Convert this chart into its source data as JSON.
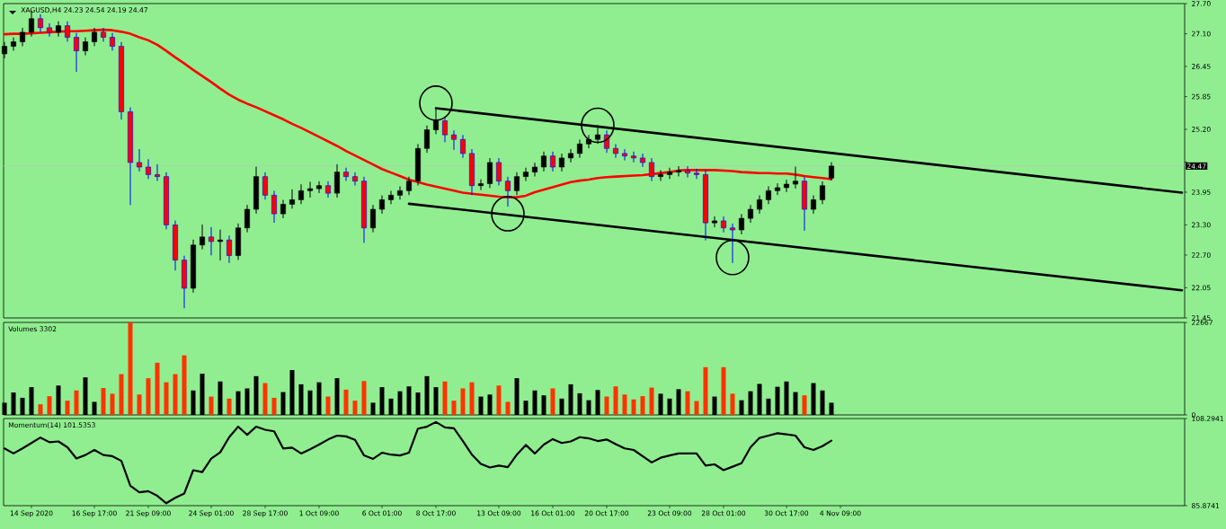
{
  "chart_data": [
    {
      "type": "candlestick",
      "title": "XAGUSD,H4  24.23 24.54 24.19 24.47",
      "categories": [
        null,
        null,
        null,
        null,
        null,
        null,
        null,
        null,
        null,
        null,
        null,
        null,
        null,
        null,
        null,
        null,
        null,
        null,
        null,
        null,
        null,
        null,
        null,
        null,
        null,
        null,
        null,
        null,
        null,
        null,
        null,
        null,
        null,
        null,
        null,
        null,
        null,
        null,
        null,
        null,
        null,
        null,
        null,
        null,
        null,
        null,
        null,
        null,
        null,
        null,
        null,
        null,
        null,
        null,
        null,
        null,
        null,
        null,
        null,
        null,
        null,
        null,
        null,
        null,
        null,
        null,
        null,
        null,
        null,
        null,
        null,
        null,
        null,
        null,
        null,
        null,
        null,
        null,
        null,
        null,
        null,
        null,
        null,
        null,
        null,
        null,
        null,
        null,
        null,
        null,
        null,
        null,
        null,
        null,
        null,
        null,
        null,
        null,
        null,
        null,
        null,
        null,
        null,
        null,
        null,
        null,
        null,
        null,
        null,
        null,
        null,
        null,
        null,
        null,
        null,
        null,
        null,
        null,
        null,
        null,
        null,
        null,
        null,
        null,
        null,
        null,
        null,
        null,
        null,
        null,
        null,
        null
      ],
      "ohlc": [
        [
          26.7,
          26.93,
          26.62,
          26.85
        ],
        [
          26.85,
          27.02,
          26.77,
          26.94
        ],
        [
          26.94,
          27.21,
          26.86,
          27.13
        ],
        [
          27.13,
          27.55,
          27.05,
          27.4
        ],
        [
          27.4,
          27.48,
          27.14,
          27.22
        ],
        [
          27.22,
          27.3,
          27.05,
          27.13
        ],
        [
          27.13,
          27.34,
          27.05,
          27.26
        ],
        [
          27.26,
          27.34,
          26.95,
          27.03
        ],
        [
          27.03,
          27.11,
          26.35,
          26.76
        ],
        [
          26.76,
          27.02,
          26.68,
          26.94
        ],
        [
          26.94,
          27.21,
          26.86,
          27.13
        ],
        [
          27.13,
          27.21,
          26.95,
          27.03
        ],
        [
          27.03,
          27.11,
          26.77,
          26.85
        ],
        [
          26.85,
          26.93,
          25.4,
          25.55
        ],
        [
          25.55,
          25.63,
          23.7,
          24.54
        ],
        [
          24.54,
          24.8,
          24.37,
          24.45
        ],
        [
          24.45,
          24.6,
          24.22,
          24.3
        ],
        [
          24.3,
          24.5,
          24.18,
          24.26
        ],
        [
          24.26,
          24.34,
          23.22,
          23.3
        ],
        [
          23.3,
          23.38,
          22.4,
          22.6
        ],
        [
          22.6,
          22.68,
          21.65,
          22.04
        ],
        [
          22.04,
          23.0,
          21.96,
          22.9
        ],
        [
          22.9,
          23.3,
          22.82,
          23.06
        ],
        [
          23.06,
          23.25,
          22.7,
          22.97
        ],
        [
          22.97,
          23.2,
          22.6,
          23.0
        ],
        [
          23.0,
          23.08,
          22.55,
          22.69
        ],
        [
          22.69,
          23.32,
          22.61,
          23.24
        ],
        [
          23.24,
          23.69,
          23.16,
          23.61
        ],
        [
          23.61,
          24.45,
          23.53,
          24.26
        ],
        [
          24.26,
          24.34,
          23.81,
          23.89
        ],
        [
          23.89,
          23.97,
          23.35,
          23.52
        ],
        [
          23.52,
          23.79,
          23.44,
          23.71
        ],
        [
          23.71,
          24.0,
          23.63,
          23.8
        ],
        [
          23.8,
          24.1,
          23.72,
          23.98
        ],
        [
          23.98,
          24.15,
          23.85,
          24.02
        ],
        [
          24.02,
          24.16,
          23.94,
          24.08
        ],
        [
          24.08,
          24.16,
          23.85,
          23.93
        ],
        [
          23.93,
          24.5,
          23.85,
          24.35
        ],
        [
          24.35,
          24.43,
          24.18,
          24.26
        ],
        [
          24.26,
          24.34,
          24.09,
          24.17
        ],
        [
          24.17,
          24.25,
          22.95,
          23.24
        ],
        [
          23.24,
          23.69,
          23.16,
          23.61
        ],
        [
          23.61,
          23.88,
          23.53,
          23.8
        ],
        [
          23.8,
          23.97,
          23.72,
          23.89
        ],
        [
          23.89,
          24.06,
          23.81,
          23.98
        ],
        [
          23.98,
          24.25,
          23.9,
          24.17
        ],
        [
          24.17,
          24.9,
          24.09,
          24.82
        ],
        [
          24.82,
          25.27,
          24.74,
          25.19
        ],
        [
          25.19,
          25.62,
          25.11,
          25.37
        ],
        [
          25.37,
          25.45,
          24.95,
          25.09
        ],
        [
          25.09,
          25.17,
          24.8,
          25.0
        ],
        [
          25.0,
          25.08,
          24.64,
          24.72
        ],
        [
          24.72,
          24.8,
          23.9,
          24.08
        ],
        [
          24.08,
          24.2,
          24.0,
          24.12
        ],
        [
          24.12,
          24.62,
          24.04,
          24.54
        ],
        [
          24.54,
          24.62,
          24.09,
          24.17
        ],
        [
          24.17,
          24.25,
          23.67,
          23.98
        ],
        [
          23.98,
          24.34,
          23.9,
          24.26
        ],
        [
          24.26,
          24.43,
          24.18,
          24.35
        ],
        [
          24.35,
          24.53,
          24.27,
          24.45
        ],
        [
          24.45,
          24.75,
          24.37,
          24.67
        ],
        [
          24.67,
          24.75,
          24.37,
          24.45
        ],
        [
          24.45,
          24.71,
          24.37,
          24.63
        ],
        [
          24.63,
          24.8,
          24.55,
          24.72
        ],
        [
          24.72,
          24.99,
          24.64,
          24.91
        ],
        [
          24.91,
          25.08,
          24.83,
          25.0
        ],
        [
          25.0,
          25.28,
          24.92,
          25.09
        ],
        [
          25.09,
          25.17,
          24.74,
          24.82
        ],
        [
          24.82,
          24.9,
          24.64,
          24.72
        ],
        [
          24.72,
          24.8,
          24.59,
          24.67
        ],
        [
          24.67,
          24.75,
          24.55,
          24.63
        ],
        [
          24.63,
          24.71,
          24.46,
          24.54
        ],
        [
          24.54,
          24.62,
          24.18,
          24.26
        ],
        [
          24.26,
          24.38,
          24.18,
          24.3
        ],
        [
          24.3,
          24.43,
          24.22,
          24.35
        ],
        [
          24.35,
          24.46,
          24.27,
          24.38
        ],
        [
          24.38,
          24.46,
          24.25,
          24.33
        ],
        [
          24.33,
          24.41,
          24.22,
          24.3
        ],
        [
          24.3,
          24.38,
          23.0,
          23.34
        ],
        [
          23.34,
          23.46,
          23.26,
          23.38
        ],
        [
          23.38,
          23.46,
          23.16,
          23.24
        ],
        [
          23.24,
          23.32,
          22.55,
          23.2
        ],
        [
          23.2,
          23.51,
          23.12,
          23.43
        ],
        [
          23.43,
          23.69,
          23.35,
          23.61
        ],
        [
          23.61,
          23.88,
          23.53,
          23.8
        ],
        [
          23.8,
          24.06,
          23.72,
          23.98
        ],
        [
          23.98,
          24.12,
          23.9,
          24.04
        ],
        [
          24.04,
          24.19,
          23.96,
          24.11
        ],
        [
          24.11,
          24.45,
          24.03,
          24.17
        ],
        [
          24.17,
          24.25,
          23.19,
          23.61
        ],
        [
          23.61,
          23.88,
          23.53,
          23.8
        ],
        [
          23.8,
          24.16,
          23.72,
          24.08
        ],
        [
          24.23,
          24.54,
          24.19,
          24.47
        ],
        null,
        null,
        null,
        null,
        null,
        null,
        null,
        null,
        null,
        null,
        null,
        null,
        null,
        null,
        null,
        null,
        null,
        null,
        null,
        null,
        null,
        null,
        null,
        null,
        null,
        null,
        null,
        null,
        null,
        null,
        null,
        null,
        null,
        null,
        null,
        null,
        null,
        null,
        null
      ],
      "series": [
        {
          "type": "line",
          "color": "#ff0000",
          "values": [
            27.09,
            27.1,
            27.1,
            27.11,
            27.12,
            27.13,
            27.14,
            27.15,
            27.15,
            27.16,
            27.17,
            27.18,
            27.17,
            27.14,
            27.1,
            27.03,
            26.97,
            26.88,
            26.76,
            26.63,
            26.51,
            26.38,
            26.26,
            26.14,
            26.01,
            25.89,
            25.79,
            25.71,
            25.64,
            25.56,
            25.48,
            25.4,
            25.31,
            25.23,
            25.14,
            25.05,
            24.96,
            24.87,
            24.77,
            24.68,
            24.59,
            24.5,
            24.41,
            24.34,
            24.27,
            24.2,
            24.15,
            24.1,
            24.06,
            24.02,
            23.98,
            23.94,
            23.92,
            23.9,
            23.88,
            23.86,
            23.85,
            23.85,
            23.88,
            23.95,
            24.0,
            24.05,
            24.1,
            24.15,
            24.18,
            24.2,
            24.23,
            24.25,
            24.26,
            24.27,
            24.28,
            24.29,
            24.31,
            24.33,
            24.35,
            24.38,
            24.39,
            24.39,
            24.39,
            24.39,
            24.38,
            24.37,
            24.35,
            24.34,
            24.33,
            24.33,
            24.32,
            24.32,
            24.3,
            24.27,
            24.25,
            24.23,
            24.21,
            null,
            null,
            null,
            null,
            null,
            null,
            null,
            null,
            null,
            null,
            null,
            null,
            null,
            null,
            null,
            null,
            null,
            null,
            null,
            null,
            null,
            null,
            null,
            null,
            null,
            null,
            null,
            null,
            null,
            null,
            null,
            null,
            null,
            null,
            null,
            null,
            null,
            null,
            null
          ]
        },
        {
          "type": "line",
          "color": "#000000",
          "values": [
            null,
            null,
            null,
            null,
            null,
            null,
            null,
            null,
            null,
            null,
            null,
            null,
            null,
            null,
            null,
            null,
            null,
            null,
            null,
            null,
            null,
            null,
            null,
            null,
            null,
            null,
            null,
            null,
            null,
            null,
            null,
            null,
            null,
            null,
            null,
            null,
            null,
            null,
            null,
            null,
            null,
            null,
            null,
            null,
            null,
            null,
            null,
            null,
            25.62,
            null,
            null,
            null,
            null,
            null,
            null,
            null,
            null,
            null,
            null,
            null,
            null,
            null,
            null,
            null,
            null,
            null,
            null,
            null,
            null,
            null,
            null,
            null,
            null,
            null,
            null,
            null,
            null,
            null,
            null,
            null,
            null,
            null,
            null,
            null,
            null,
            null,
            null,
            null,
            null,
            null,
            null,
            null,
            null,
            null,
            null,
            null,
            null,
            null,
            null,
            null,
            null,
            null,
            null,
            null,
            null,
            null,
            null,
            null,
            null,
            null,
            null,
            null,
            null,
            null,
            null,
            null,
            null,
            null,
            null,
            null,
            null,
            null,
            null,
            null,
            null,
            null,
            null,
            null,
            null,
            null,
            null,
            23.94
          ]
        },
        {
          "type": "line",
          "color": "#000000",
          "values": [
            null,
            null,
            null,
            null,
            null,
            null,
            null,
            null,
            null,
            null,
            null,
            null,
            null,
            null,
            null,
            null,
            null,
            null,
            null,
            null,
            null,
            null,
            null,
            null,
            null,
            null,
            null,
            null,
            null,
            null,
            null,
            null,
            null,
            null,
            null,
            null,
            null,
            null,
            null,
            null,
            null,
            null,
            null,
            null,
            null,
            23.72,
            null,
            null,
            null,
            null,
            null,
            null,
            null,
            null,
            null,
            null,
            null,
            null,
            null,
            null,
            null,
            null,
            null,
            null,
            null,
            null,
            null,
            null,
            null,
            null,
            null,
            null,
            null,
            null,
            null,
            null,
            null,
            null,
            null,
            null,
            null,
            null,
            null,
            null,
            null,
            null,
            null,
            null,
            null,
            null,
            null,
            null,
            null,
            null,
            null,
            null,
            null,
            null,
            null,
            null,
            null,
            null,
            null,
            null,
            null,
            null,
            null,
            null,
            null,
            null,
            null,
            null,
            null,
            null,
            null,
            null,
            null,
            null,
            null,
            null,
            null,
            null,
            null,
            null,
            null,
            null,
            null,
            null,
            null,
            null,
            null,
            22.0
          ]
        }
      ],
      "ylim": [
        21.45,
        27.7
      ],
      "yticks": [
        {
          "value": 27.7,
          "label": "27.70"
        },
        {
          "value": 27.1,
          "label": "27.10"
        },
        {
          "value": 26.45,
          "label": "26.45"
        },
        {
          "value": 25.85,
          "label": "25.85"
        },
        {
          "value": 25.2,
          "label": "25.20"
        },
        {
          "value": 24.55,
          "label": null
        },
        {
          "value": 23.95,
          "label": "23.95"
        },
        {
          "value": 23.3,
          "label": "23.30"
        },
        {
          "value": 22.7,
          "label": "22.70"
        },
        {
          "value": 22.05,
          "label": "22.05"
        },
        {
          "value": 21.45,
          "label": "21.45"
        }
      ],
      "ref_lines": [
        {
          "axis": "y",
          "value": 24.47,
          "label": "24.47",
          "color": "#c0c0c0"
        }
      ],
      "tick_labels": "y"
    },
    {
      "type": "bar",
      "title": "Volumes 3302",
      "categories": [
        null,
        null,
        null,
        null,
        null,
        null,
        null,
        null,
        null,
        null,
        null,
        null,
        null,
        null,
        null,
        null,
        null,
        null,
        null,
        null,
        null,
        null,
        null,
        null,
        null,
        null,
        null,
        null,
        null,
        null,
        null,
        null,
        null,
        null,
        null,
        null,
        null,
        null,
        null,
        null,
        null,
        null,
        null,
        null,
        null,
        null,
        null,
        null,
        null,
        null,
        null,
        null,
        null,
        null,
        null,
        null,
        null,
        null,
        null,
        null,
        null,
        null,
        null,
        null,
        null,
        null,
        null,
        null,
        null,
        null,
        null,
        null,
        null,
        null,
        null,
        null,
        null,
        null,
        null,
        null,
        null,
        null,
        null,
        null,
        null,
        null,
        null,
        null,
        null,
        null,
        null,
        null,
        null,
        null,
        null,
        null,
        null,
        null,
        null,
        null,
        null,
        null,
        null,
        null,
        null,
        null,
        null,
        null,
        null,
        null,
        null,
        null,
        null,
        null,
        null,
        null,
        null,
        null,
        null,
        null,
        null,
        null,
        null,
        null,
        null,
        null,
        null,
        null,
        null,
        null,
        null,
        null
      ],
      "values": [
        3000,
        5500,
        4200,
        6800,
        2600,
        4600,
        7200,
        3500,
        6000,
        9200,
        3200,
        6600,
        5200,
        10000,
        22667,
        5000,
        9000,
        12800,
        8000,
        10000,
        14600,
        6000,
        10100,
        4500,
        8200,
        4000,
        5800,
        6500,
        9500,
        7800,
        4200,
        5600,
        11000,
        7500,
        6000,
        8000,
        4500,
        9000,
        6200,
        3500,
        8300,
        3000,
        6800,
        4000,
        5800,
        7000,
        5500,
        9500,
        6800,
        8200,
        3500,
        6500,
        8000,
        4500,
        5000,
        7200,
        3200,
        9000,
        3500,
        6000,
        4800,
        6500,
        4000,
        7500,
        5300,
        3600,
        6100,
        4500,
        7000,
        5000,
        3800,
        4600,
        6700,
        5200,
        4000,
        6300,
        5800,
        3400,
        11700,
        4500,
        11700,
        5200,
        3600,
        5800,
        7600,
        4000,
        6900,
        8200,
        5600,
        4800,
        7800,
        6000,
        3000,
        null,
        null,
        null,
        null,
        null,
        null,
        null,
        null,
        null,
        null,
        null,
        null,
        null,
        null,
        null,
        null,
        null,
        null,
        null,
        null,
        null,
        null,
        null,
        null,
        null,
        null,
        null,
        null,
        null,
        null,
        null,
        null,
        null,
        null,
        null,
        null,
        null,
        null,
        null
      ],
      "colors": [
        "#000000",
        "#000000",
        "#000000",
        "#000000",
        "#ff3300",
        "#ff3300",
        "#000000",
        "#ff3300",
        "#ff3300",
        "#000000",
        "#000000",
        "#ff3300",
        "#ff3300",
        "#ff3300",
        "#ff3300",
        "#ff3300",
        "#ff3300",
        "#ff3300",
        "#ff3300",
        "#ff3300",
        "#ff3300",
        "#000000",
        "#000000",
        "#ff3300",
        "#000000",
        "#ff3300",
        "#000000",
        "#000000",
        "#000000",
        "#ff3300",
        "#ff3300",
        "#000000",
        "#000000",
        "#000000",
        "#000000",
        "#000000",
        "#ff3300",
        "#000000",
        "#ff3300",
        "#ff3300",
        "#ff3300",
        "#000000",
        "#000000",
        "#000000",
        "#000000",
        "#000000",
        "#000000",
        "#000000",
        "#000000",
        "#ff3300",
        "#ff3300",
        "#ff3300",
        "#ff3300",
        "#000000",
        "#000000",
        "#ff3300",
        "#ff3300",
        "#000000",
        "#000000",
        "#000000",
        "#000000",
        "#ff3300",
        "#000000",
        "#000000",
        "#000000",
        "#000000",
        "#000000",
        "#ff3300",
        "#ff3300",
        "#ff3300",
        "#ff3300",
        "#ff3300",
        "#ff3300",
        "#000000",
        "#000000",
        "#000000",
        "#ff3300",
        "#ff3300",
        "#ff3300",
        "#000000",
        "#ff3300",
        "#ff3300",
        "#000000",
        "#000000",
        "#000000",
        "#000000",
        "#000000",
        "#000000",
        "#000000",
        "#ff3300",
        "#000000",
        "#000000",
        "#000000",
        null,
        null,
        null,
        null,
        null,
        null,
        null,
        null,
        null,
        null,
        null,
        null,
        null,
        null,
        null,
        null,
        null,
        null,
        null,
        null,
        null,
        null,
        null,
        null,
        null,
        null,
        null,
        null,
        null,
        null,
        null,
        null,
        null,
        null,
        null,
        null,
        null,
        null,
        null
      ],
      "ylim": [
        0,
        22667
      ],
      "yticks": [
        0,
        22667
      ],
      "tick_labels": "y"
    },
    {
      "type": "line",
      "title": "Momentum(14) 101.5353",
      "categories": [
        null,
        null,
        null,
        "14 Sep 2020",
        null,
        null,
        null,
        null,
        null,
        null,
        "16 Sep 17:00",
        null,
        null,
        null,
        null,
        null,
        "21 Sep 09:00",
        null,
        null,
        null,
        null,
        null,
        null,
        "24 Sep 01:00",
        null,
        null,
        null,
        null,
        null,
        "28 Sep 17:00",
        null,
        null,
        null,
        null,
        null,
        "1 Oct 09:00",
        null,
        null,
        null,
        null,
        null,
        null,
        "6 Oct 01:00",
        null,
        null,
        null,
        null,
        null,
        "8 Oct 17:00",
        null,
        null,
        null,
        null,
        null,
        null,
        "13 Oct 09:00",
        null,
        null,
        null,
        null,
        null,
        "16 Oct 01:00",
        null,
        null,
        null,
        null,
        null,
        "20 Oct 17:00",
        null,
        null,
        null,
        null,
        null,
        null,
        "23 Oct 09:00",
        null,
        null,
        null,
        null,
        null,
        "28 Oct 01:00",
        null,
        null,
        null,
        null,
        null,
        null,
        "30 Oct 17:00",
        null,
        null,
        null,
        null,
        null,
        "4 Nov 09:00",
        null,
        null,
        null,
        null,
        null,
        null,
        null,
        null,
        null,
        null,
        null,
        null,
        null,
        null,
        null,
        null,
        null,
        null,
        null,
        null,
        null,
        null,
        null,
        null,
        null,
        null,
        null,
        null,
        null,
        null,
        null,
        null,
        null,
        null,
        null,
        null,
        null,
        null
      ],
      "series": [
        {
          "color": "#000000",
          "values": [
            100.6,
            99.3,
            100.6,
            102.0,
            103.4,
            102.2,
            102.4,
            100.9,
            98.0,
            98.9,
            100.2,
            98.9,
            98.6,
            97.4,
            91.0,
            89.3,
            89.6,
            88.4,
            86.5,
            87.9,
            89.0,
            95.0,
            94.5,
            98.0,
            99.6,
            103.5,
            106.2,
            104.1,
            106.2,
            105.4,
            105.0,
            100.6,
            100.8,
            99.3,
            100.4,
            101.6,
            102.9,
            103.9,
            103.7,
            102.8,
            98.8,
            97.9,
            99.5,
            99.0,
            98.8,
            99.5,
            105.7,
            106.2,
            107.4,
            106.0,
            105.8,
            102.5,
            99.0,
            96.6,
            95.7,
            96.2,
            95.8,
            99.0,
            101.5,
            99.3,
            101.6,
            103.0,
            102.0,
            102.4,
            103.5,
            103.2,
            102.5,
            102.9,
            101.7,
            100.6,
            100.2,
            98.6,
            97.0,
            98.2,
            98.8,
            99.3,
            99.3,
            99.3,
            96.2,
            96.5,
            95.0,
            95.9,
            96.8,
            100.9,
            103.3,
            103.9,
            104.5,
            104.2,
            103.9,
            100.9,
            100.2,
            101.2,
            102.6,
            null,
            null,
            null,
            null,
            null,
            null,
            null,
            null,
            null,
            null,
            null,
            null,
            null,
            null,
            null,
            null,
            null,
            null,
            null,
            null,
            null,
            null,
            null,
            null,
            null,
            null,
            null,
            null,
            null,
            null,
            null,
            null,
            null,
            null,
            null,
            null,
            null,
            null,
            null
          ]
        }
      ],
      "ylim": [
        85.8741,
        108.2941
      ],
      "yticks": [
        85.8741,
        108.2941
      ]
    }
  ]
}
